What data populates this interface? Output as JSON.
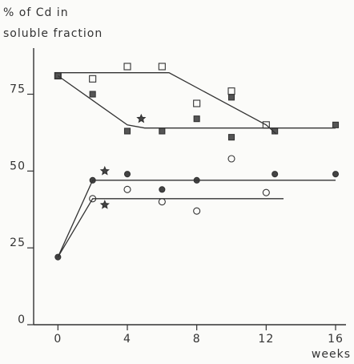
{
  "chart_data": {
    "type": "scatter",
    "ylabel": [
      "% of Cd in",
      "soluble fraction"
    ],
    "xlabel": "weeks",
    "xlim": [
      -1.4,
      16.6
    ],
    "ylim": [
      0,
      90
    ],
    "xticks": [
      0,
      4,
      8,
      12,
      16
    ],
    "yticks": [
      0,
      25,
      50,
      75
    ],
    "color": "#333333",
    "series": [
      {
        "marker": "square-open",
        "x": [
          0,
          2,
          4,
          6,
          8,
          10,
          12
        ],
        "values": [
          81,
          80,
          84,
          84,
          72,
          76,
          65
        ]
      },
      {
        "marker": "square-filled",
        "x": [
          0,
          2,
          4,
          6,
          8,
          10,
          10,
          12.5,
          16
        ],
        "values": [
          81,
          75,
          63,
          63,
          67,
          74,
          61,
          63,
          65
        ]
      },
      {
        "marker": "star",
        "x": [
          4.8,
          2.7,
          2.7
        ],
        "values": [
          67,
          50,
          39
        ]
      },
      {
        "marker": "circle-filled",
        "x": [
          0,
          2,
          4,
          6,
          8,
          12.5,
          16
        ],
        "values": [
          22,
          47,
          49,
          44,
          47,
          49,
          49
        ]
      },
      {
        "marker": "circle-open",
        "x": [
          2,
          4,
          6,
          8,
          10,
          12
        ],
        "values": [
          41,
          44,
          40,
          37,
          54,
          43
        ]
      },
      {
        "marker": "line",
        "x": [
          0,
          6.4,
          12,
          12.6
        ],
        "values": [
          82,
          82,
          65,
          62
        ]
      },
      {
        "marker": "line",
        "x": [
          0,
          2,
          4,
          5,
          16
        ],
        "values": [
          81,
          73,
          65,
          64,
          64
        ]
      },
      {
        "marker": "line",
        "x": [
          0,
          2,
          16
        ],
        "values": [
          22,
          47,
          47
        ]
      },
      {
        "marker": "line",
        "x": [
          0,
          2,
          13
        ],
        "values": [
          22,
          41,
          41
        ]
      }
    ]
  }
}
